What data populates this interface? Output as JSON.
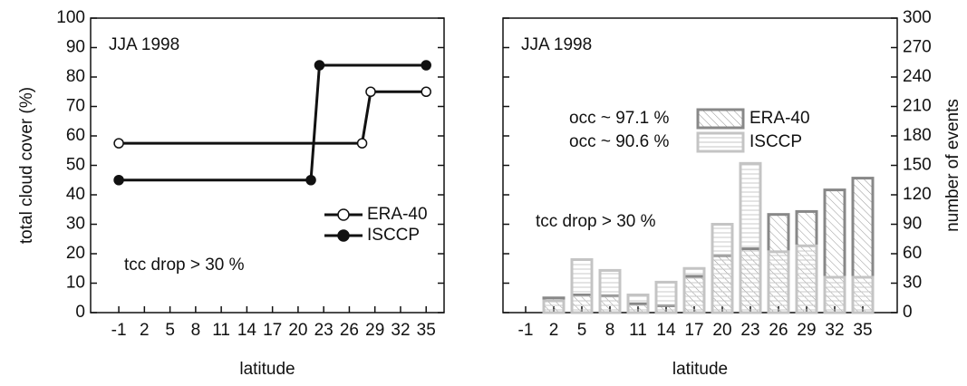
{
  "chart_data": [
    {
      "type": "line",
      "x_label": "latitude",
      "y_label": "total cloud cover (%)",
      "annotations": [
        "JJA 1998",
        "tcc drop > 30 %"
      ],
      "xlim": [
        -4.3,
        37.1
      ],
      "xticks": [
        -1,
        2,
        5,
        8,
        11,
        14,
        17,
        20,
        23,
        26,
        29,
        32,
        35
      ],
      "ylim": [
        0,
        100
      ],
      "yticks": [
        0,
        10,
        20,
        30,
        40,
        50,
        60,
        70,
        80,
        90,
        100
      ],
      "legend": "lower right",
      "series": [
        {
          "name": "ERA-40",
          "color": "#111111",
          "marker": "open",
          "x": [
            -1,
            27.5,
            28.5,
            35
          ],
          "values": [
            57.5,
            57.5,
            75,
            75
          ]
        },
        {
          "name": "ISCCP",
          "color": "#111111",
          "marker": "filled",
          "x": [
            -1,
            21.5,
            22.5,
            35
          ],
          "values": [
            45,
            45,
            84,
            84
          ]
        }
      ]
    },
    {
      "type": "bar",
      "x_label": "latitude",
      "y_label": "number of events",
      "annotations": [
        "JJA 1998",
        "tcc drop > 30 %"
      ],
      "categories": [
        "-1",
        "2",
        "5",
        "8",
        "11",
        "14",
        "17",
        "20",
        "23",
        "26",
        "29",
        "32",
        "35"
      ],
      "y2lim": [
        0,
        300
      ],
      "y2ticks": [
        0,
        30,
        60,
        90,
        120,
        150,
        180,
        210,
        240,
        270,
        300
      ],
      "legend": "upper center",
      "series": [
        {
          "name": "ERA-40",
          "note": "occ ~ 97.1 %",
          "color": "#888888",
          "hatch": "diagonal",
          "axis": "y2",
          "values": [
            0,
            15,
            18,
            17,
            9,
            7,
            37,
            58,
            65,
            100,
            103,
            125,
            137
          ]
        },
        {
          "name": "ISCCP",
          "note": "occ ~ 90.6 %",
          "color": "#c4c4c4",
          "hatch": "horizontal",
          "axis": "y2",
          "values": [
            0,
            12,
            54,
            43,
            18,
            31,
            45,
            90,
            152,
            62,
            68,
            36,
            36
          ]
        }
      ]
    }
  ]
}
